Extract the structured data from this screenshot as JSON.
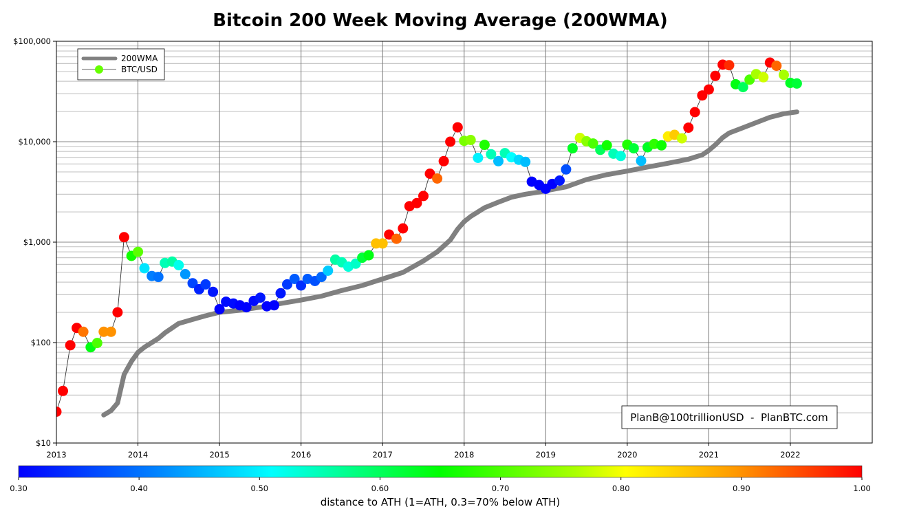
{
  "chart_data": {
    "type": "scatter",
    "title": "Bitcoin 200 Week Moving Average (200WMA)",
    "xlabel": "",
    "ylabel": "",
    "yscale": "log",
    "xlim": [
      2013,
      2023.0
    ],
    "ylim": [
      10,
      100000
    ],
    "grid": true,
    "x_ticks": [
      "2013",
      "2014",
      "2015",
      "2016",
      "2017",
      "2018",
      "2019",
      "2020",
      "2021",
      "2022"
    ],
    "x_tick_values": [
      2013,
      2014,
      2015,
      2016,
      2017,
      2018,
      2019,
      2020,
      2021,
      2022
    ],
    "y_ticks": [
      "$10",
      "$100",
      "$1,000",
      "$10,000",
      "$100,000"
    ],
    "y_tick_values": [
      10,
      100,
      1000,
      10000,
      100000
    ],
    "legend": {
      "placement": "top-left",
      "entries": [
        "200WMA",
        "BTC/USD"
      ]
    },
    "annotation": "PlanB@100trillionUSD  -  PlanBTC.com",
    "colorbar": {
      "label": "distance to ATH (1=ATH, 0.3=70% below ATH)",
      "range": [
        0.3,
        1.0
      ],
      "ticks": [
        "0.30",
        "0.40",
        "0.50",
        "0.60",
        "0.70",
        "0.80",
        "0.90",
        "1.00"
      ],
      "tick_values": [
        0.3,
        0.4,
        0.5,
        0.6,
        0.7,
        0.8,
        0.9,
        1.0
      ],
      "colormap": "jet-like"
    },
    "colors": {
      "wma": "#808080",
      "line": "#333333",
      "legend_marker": "#66ff00"
    },
    "series": [
      {
        "name": "200WMA",
        "type": "line",
        "x": [
          2013.58,
          2013.67,
          2013.75,
          2013.83,
          2013.92,
          2014.0,
          2014.08,
          2014.17,
          2014.25,
          2014.33,
          2014.42,
          2014.5,
          2014.67,
          2014.83,
          2015.0,
          2015.25,
          2015.5,
          2015.75,
          2016.0,
          2016.25,
          2016.5,
          2016.75,
          2017.0,
          2017.25,
          2017.5,
          2017.67,
          2017.83,
          2017.92,
          2018.0,
          2018.08,
          2018.17,
          2018.25,
          2018.42,
          2018.58,
          2018.75,
          2018.92,
          2019.0,
          2019.25,
          2019.5,
          2019.75,
          2020.0,
          2020.25,
          2020.5,
          2020.75,
          2020.92,
          2021.0,
          2021.08,
          2021.17,
          2021.25,
          2021.42,
          2021.58,
          2021.75,
          2021.92,
          2022.08
        ],
        "y": [
          19,
          21,
          25,
          48,
          65,
          80,
          90,
          100,
          110,
          125,
          140,
          155,
          170,
          185,
          200,
          210,
          225,
          245,
          265,
          290,
          330,
          370,
          430,
          500,
          650,
          800,
          1050,
          1350,
          1600,
          1800,
          2000,
          2200,
          2500,
          2800,
          3000,
          3150,
          3250,
          3550,
          4200,
          4700,
          5100,
          5600,
          6100,
          6700,
          7400,
          8200,
          9300,
          11000,
          12200,
          13800,
          15500,
          17500,
          19000,
          19800
        ]
      },
      {
        "name": "BTC/USD",
        "type": "scatter",
        "x": [
          2013.0,
          2013.08,
          2013.17,
          2013.25,
          2013.33,
          2013.42,
          2013.5,
          2013.58,
          2013.67,
          2013.75,
          2013.83,
          2013.92,
          2014.0,
          2014.08,
          2014.17,
          2014.25,
          2014.33,
          2014.42,
          2014.5,
          2014.58,
          2014.67,
          2014.75,
          2014.83,
          2014.92,
          2015.0,
          2015.08,
          2015.17,
          2015.25,
          2015.33,
          2015.42,
          2015.5,
          2015.58,
          2015.67,
          2015.75,
          2015.83,
          2015.92,
          2016.0,
          2016.08,
          2016.17,
          2016.25,
          2016.33,
          2016.42,
          2016.5,
          2016.58,
          2016.67,
          2016.75,
          2016.83,
          2016.92,
          2017.0,
          2017.08,
          2017.17,
          2017.25,
          2017.33,
          2017.42,
          2017.5,
          2017.58,
          2017.67,
          2017.75,
          2017.83,
          2017.92,
          2018.0,
          2018.08,
          2018.17,
          2018.25,
          2018.33,
          2018.42,
          2018.5,
          2018.58,
          2018.67,
          2018.75,
          2018.83,
          2018.92,
          2019.0,
          2019.08,
          2019.17,
          2019.25,
          2019.33,
          2019.42,
          2019.5,
          2019.58,
          2019.67,
          2019.75,
          2019.83,
          2019.92,
          2020.0,
          2020.08,
          2020.17,
          2020.25,
          2020.33,
          2020.42,
          2020.5,
          2020.58,
          2020.67,
          2020.75,
          2020.83,
          2020.92,
          2021.0,
          2021.08,
          2021.17,
          2021.25,
          2021.33,
          2021.42,
          2021.5,
          2021.58,
          2021.67,
          2021.75,
          2021.83,
          2021.92,
          2022.0,
          2022.08
        ],
        "y": [
          20.5,
          33,
          94,
          140,
          128,
          90,
          99,
          128,
          128,
          200,
          1120,
          730,
          800,
          550,
          460,
          450,
          620,
          640,
          590,
          480,
          390,
          340,
          380,
          320,
          215,
          255,
          245,
          235,
          225,
          260,
          280,
          230,
          235,
          310,
          380,
          430,
          370,
          430,
          410,
          450,
          520,
          670,
          630,
          570,
          610,
          700,
          740,
          970,
          970,
          1190,
          1080,
          1370,
          2280,
          2450,
          2880,
          4800,
          4300,
          6400,
          10000,
          13900,
          10200,
          10400,
          6900,
          9300,
          7500,
          6400,
          7700,
          7000,
          6600,
          6300,
          4000,
          3700,
          3400,
          3800,
          4100,
          5300,
          8600,
          10900,
          10100,
          9600,
          8300,
          9200,
          7600,
          7200,
          9350,
          8600,
          6450,
          8800,
          9500,
          9200,
          11300,
          11700,
          10800,
          13800,
          19700,
          28900,
          33100,
          45200,
          58500,
          57800,
          37300,
          35000,
          41500,
          47100,
          43800,
          61300,
          57000,
          46300,
          38500,
          38000
        ],
        "ath_distance": [
          1.0,
          1.0,
          1.0,
          1.0,
          0.92,
          0.64,
          0.7,
          0.9,
          0.9,
          1.0,
          1.0,
          0.66,
          0.71,
          0.49,
          0.41,
          0.4,
          0.55,
          0.56,
          0.52,
          0.43,
          0.36,
          0.33,
          0.35,
          0.32,
          0.3,
          0.31,
          0.31,
          0.3,
          0.3,
          0.31,
          0.32,
          0.3,
          0.3,
          0.32,
          0.35,
          0.38,
          0.34,
          0.38,
          0.37,
          0.39,
          0.47,
          0.56,
          0.55,
          0.53,
          0.54,
          0.62,
          0.64,
          0.86,
          0.86,
          1.0,
          0.93,
          1.0,
          1.0,
          1.0,
          1.0,
          1.0,
          0.93,
          1.0,
          1.0,
          1.0,
          0.73,
          0.74,
          0.5,
          0.67,
          0.55,
          0.46,
          0.55,
          0.51,
          0.48,
          0.46,
          0.3,
          0.3,
          0.3,
          0.3,
          0.32,
          0.37,
          0.63,
          0.78,
          0.74,
          0.7,
          0.6,
          0.66,
          0.55,
          0.53,
          0.67,
          0.62,
          0.46,
          0.63,
          0.68,
          0.66,
          0.82,
          0.85,
          0.78,
          1.0,
          1.0,
          1.0,
          1.0,
          1.0,
          1.0,
          0.97,
          0.64,
          0.6,
          0.7,
          0.76,
          0.78,
          1.0,
          0.93,
          0.76,
          0.63,
          0.62
        ]
      }
    ]
  }
}
